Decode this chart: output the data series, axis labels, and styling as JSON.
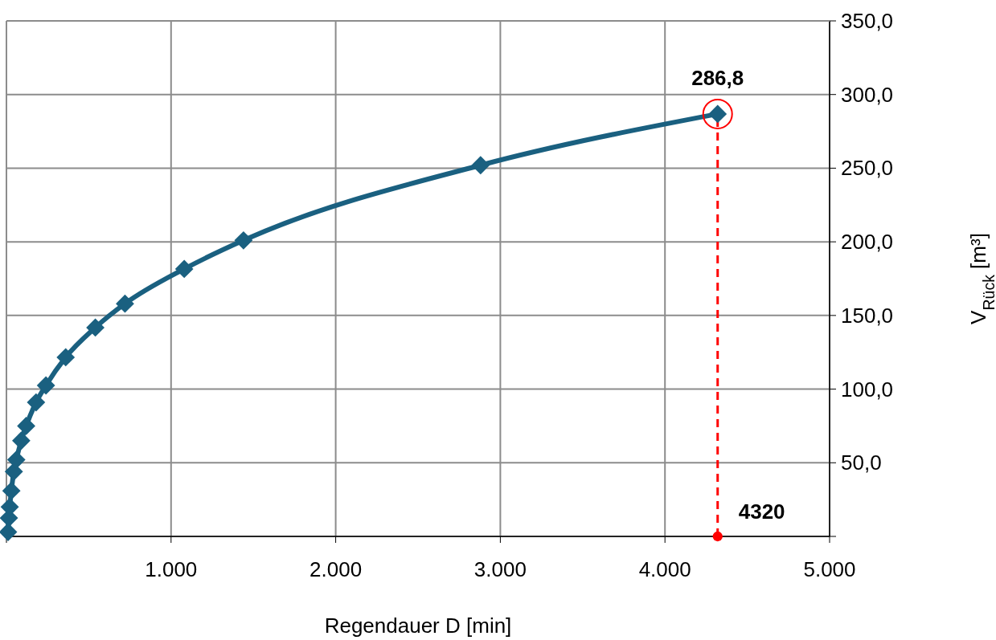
{
  "chart_data": {
    "type": "line",
    "xlabel": "Regendauer D [min]",
    "ylabel": "V$_{Rück}$  [m³]",
    "xlim": [
      0,
      5000
    ],
    "ylim": [
      0,
      350
    ],
    "xticks": [
      {
        "value": 0,
        "label": null
      },
      {
        "value": 1000,
        "label": "1.000"
      },
      {
        "value": 2000,
        "label": "2.000"
      },
      {
        "value": 3000,
        "label": "3.000"
      },
      {
        "value": 4000,
        "label": "4.000"
      },
      {
        "value": 5000,
        "label": "5.000"
      }
    ],
    "yticks": [
      {
        "value": 0,
        "label": null
      },
      {
        "value": 50,
        "label": "50,0"
      },
      {
        "value": 100,
        "label": "100,0"
      },
      {
        "value": 150,
        "label": "150,0"
      },
      {
        "value": 200,
        "label": "200,0"
      },
      {
        "value": 250,
        "label": "250,0"
      },
      {
        "value": 300,
        "label": "300,0"
      },
      {
        "value": 350,
        "label": "350,0"
      }
    ],
    "grid": true,
    "marker": "diamond",
    "line_style": "solid",
    "series": [
      {
        "color": "#1a6080",
        "x": [
          10,
          15,
          20,
          30,
          45,
          60,
          90,
          120,
          180,
          240,
          360,
          540,
          720,
          1080,
          1440,
          2880,
          4320
        ],
        "values": [
          3,
          12.5,
          20,
          31,
          44,
          52,
          65,
          75,
          91,
          102.5,
          121.6,
          141.8,
          158,
          181.6,
          201,
          252,
          286.8
        ]
      },
      {
        "type": "scatter",
        "marker": "circle",
        "color": "#ff0000",
        "x": [
          4320
        ],
        "values": [
          0
        ]
      }
    ],
    "ref_lines": [
      {
        "axis": "x",
        "value": 4320,
        "color": "#ff0000",
        "line_style": "dashed"
      }
    ],
    "annotations": [
      {
        "text": "286,8",
        "x": 4320,
        "y": 286.8
      },
      {
        "text": "4320",
        "x": 4320,
        "y": 0
      }
    ]
  }
}
